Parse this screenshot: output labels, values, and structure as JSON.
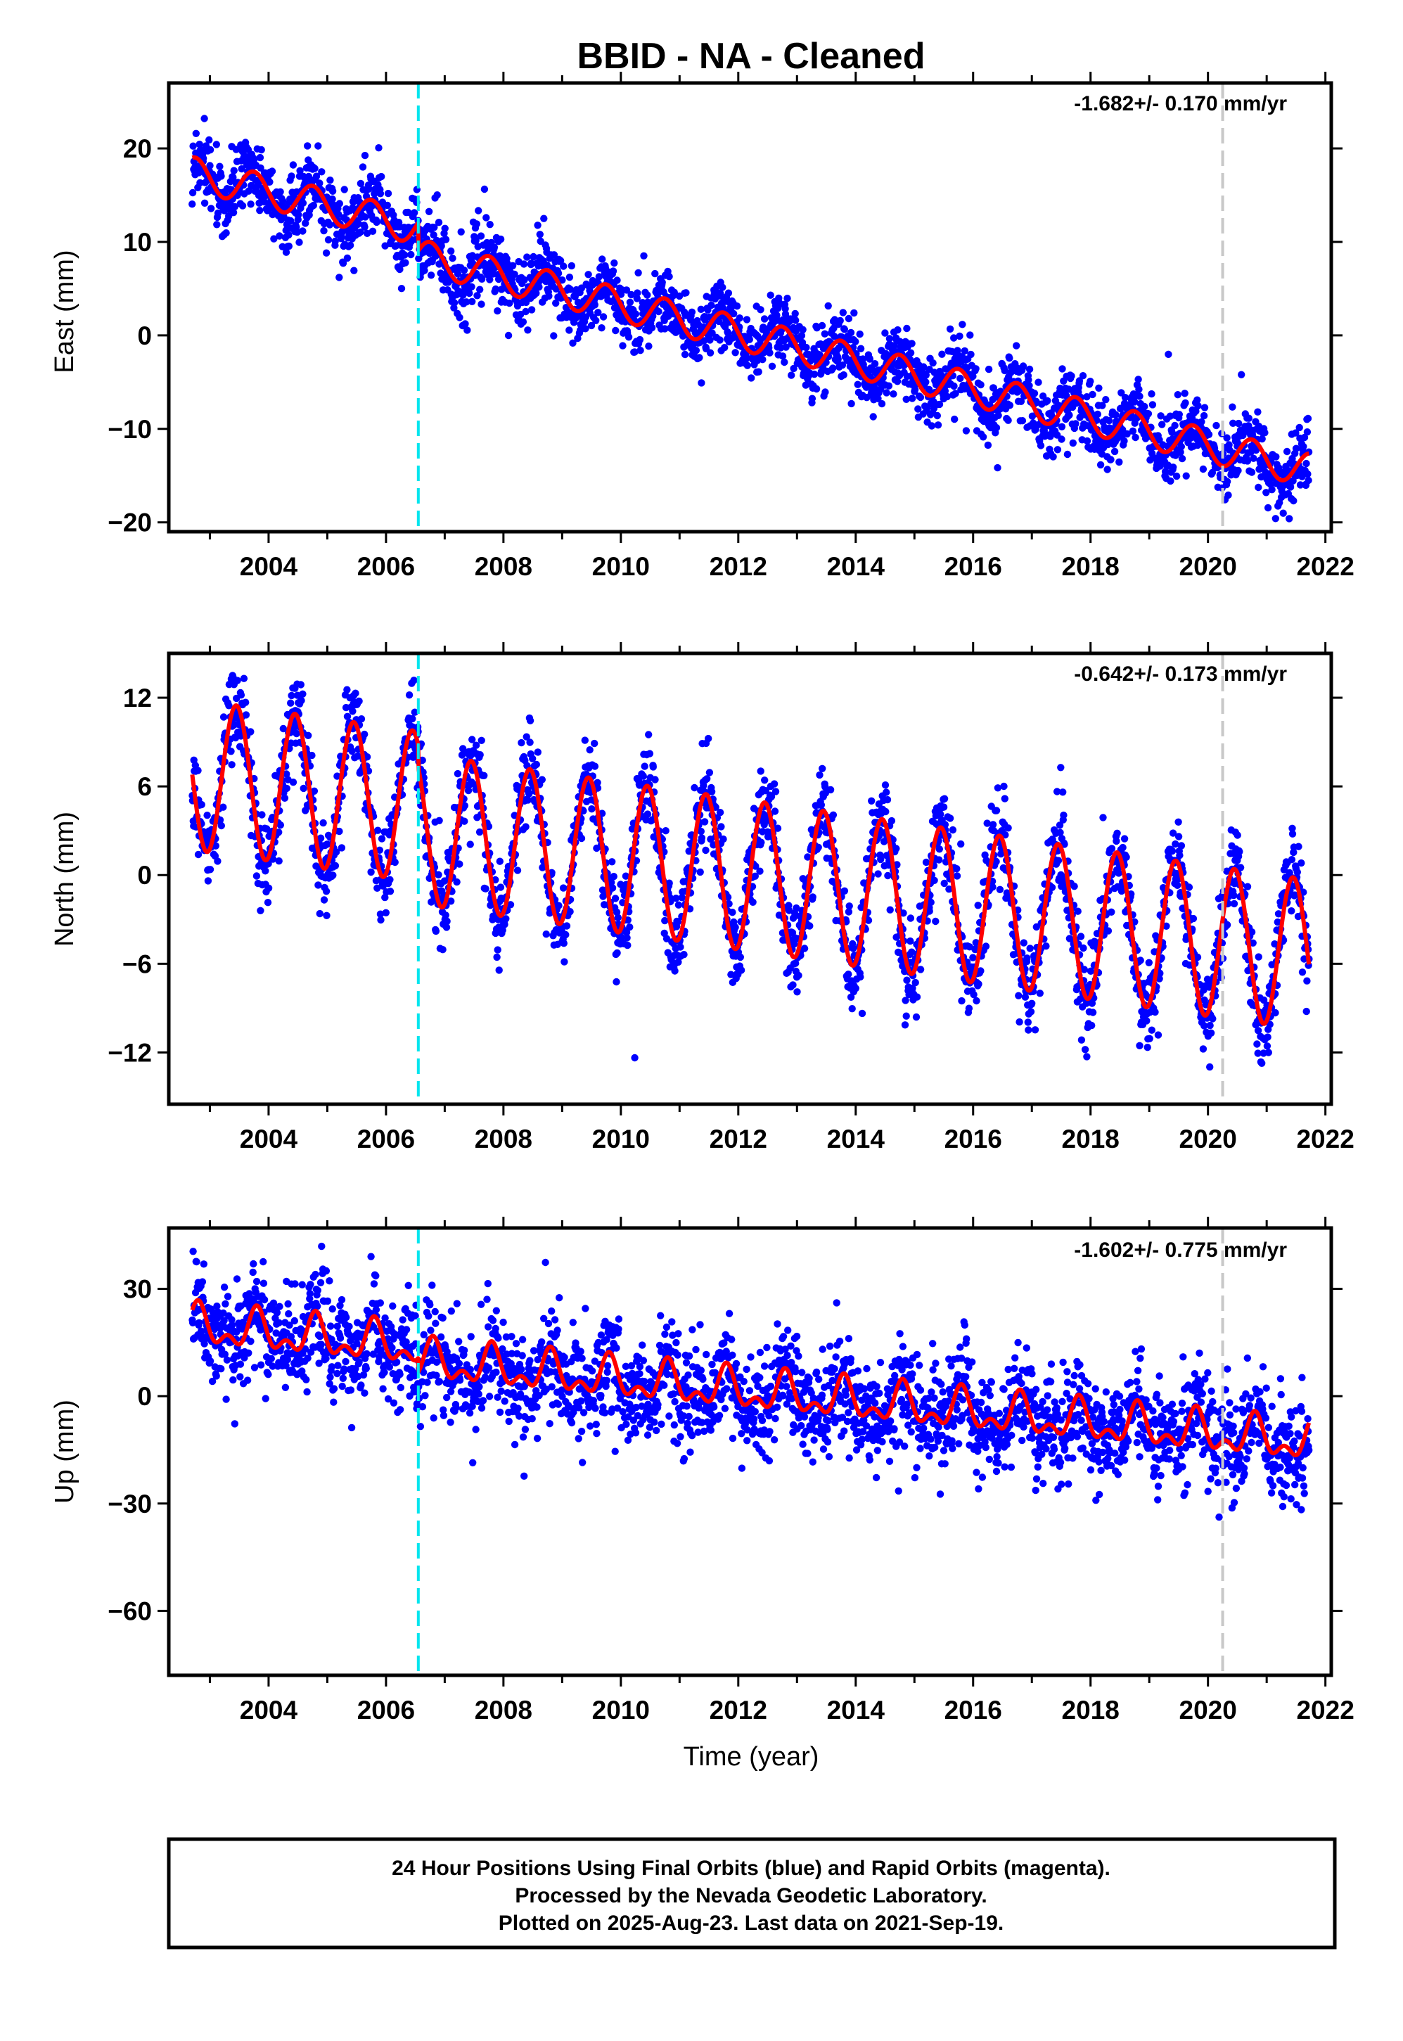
{
  "title": "BBID  - NA - Cleaned",
  "xlabel": "Time (year)",
  "footer": {
    "line1": "24 Hour Positions Using Final Orbits (blue) and Rapid Orbits (magenta).",
    "line2": "Processed by the Nevada Geodetic Laboratory.",
    "line3": "Plotted on 2025-Aug-23. Last data on 2021-Sep-19."
  },
  "colors": {
    "data": "#0000ff",
    "fit": "#ff0000",
    "equipment_change": "#00e5ee",
    "gray_marker": "#c8c8c8"
  },
  "chart_data": [
    {
      "type": "scatter",
      "component": "east",
      "ylabel": "East (mm)",
      "rate_text": "-1.682+/- 0.170 mm/yr",
      "xlim": [
        2002.3,
        2022.1
      ],
      "ylim": [
        -21,
        27
      ],
      "yticks": [
        -20,
        -10,
        0,
        10,
        20
      ],
      "xticks": [
        2004,
        2006,
        2008,
        2010,
        2012,
        2014,
        2016,
        2018,
        2020,
        2022
      ],
      "data_start": 2002.7,
      "data_end": 2021.72,
      "vertical_lines": [
        {
          "x": 2006.55,
          "style": "dashed",
          "color": "cyan"
        },
        {
          "x": 2020.25,
          "style": "dashed",
          "color": "gray"
        }
      ],
      "fit": {
        "start_value": 17.3,
        "end_value": -14.4,
        "offset_at": 2006.55,
        "offset": -3.0,
        "annual_amplitude": 1.8,
        "annual_phase_peak": 0.75
      },
      "scatter_sigma": 1.8
    },
    {
      "type": "scatter",
      "component": "north",
      "ylabel": "North (mm)",
      "rate_text": "-0.642+/- 0.173 mm/yr",
      "xlim": [
        2002.3,
        2022.1
      ],
      "ylim": [
        -15.5,
        15
      ],
      "yticks": [
        -12,
        -6,
        0,
        6,
        12
      ],
      "xticks": [
        2004,
        2006,
        2008,
        2010,
        2012,
        2014,
        2016,
        2018,
        2020,
        2022
      ],
      "data_start": 2002.7,
      "data_end": 2021.72,
      "vertical_lines": [
        {
          "x": 2006.55,
          "style": "dashed",
          "color": "cyan"
        },
        {
          "x": 2020.25,
          "style": "dashed",
          "color": "gray"
        }
      ],
      "fit": {
        "start_value": 6.8,
        "end_value": -5.4,
        "offset_at": 2006.55,
        "offset": -1.5,
        "annual_amplitude": 5.1,
        "annual_phase_peak": 0.45
      },
      "scatter_sigma": 1.5
    },
    {
      "type": "scatter",
      "component": "up",
      "ylabel": "Up (mm)",
      "rate_text": "-1.602+/- 0.775 mm/yr",
      "xlim": [
        2002.3,
        2022.1
      ],
      "ylim": [
        -78,
        47
      ],
      "yticks": [
        -60,
        -30,
        0,
        30
      ],
      "xticks": [
        2004,
        2006,
        2008,
        2010,
        2012,
        2014,
        2016,
        2018,
        2020,
        2022
      ],
      "data_start": 2002.7,
      "data_end": 2021.72,
      "vertical_lines": [
        {
          "x": 2006.55,
          "style": "dashed",
          "color": "cyan"
        },
        {
          "x": 2020.25,
          "style": "dashed",
          "color": "gray"
        }
      ],
      "fit": {
        "start_value": 19.5,
        "end_value": -13.0,
        "offset_at": 2006.55,
        "offset": -4.0,
        "annual_amplitude": 4.5,
        "annual_phase_peak": 0.8,
        "semiannual_amplitude": 3.0
      },
      "scatter_sigma": 7.0
    }
  ]
}
